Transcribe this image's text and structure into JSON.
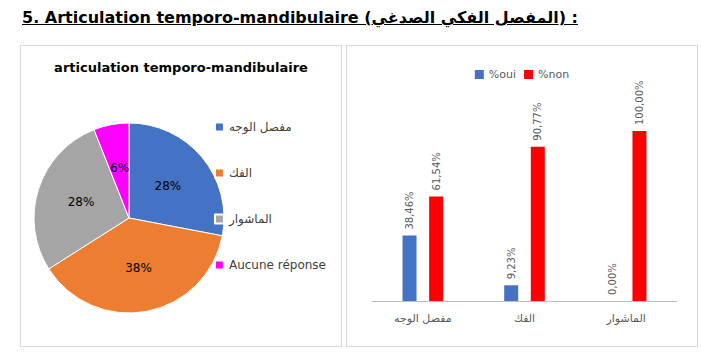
{
  "heading": "5.  Articulation temporo-mandibulaire  (المفصل الفكي الصدغي) :",
  "chart_data": [
    {
      "type": "pie",
      "title": "articulation temporo-mandibulaire",
      "categories": [
        "مفصل الوجه",
        "الفك",
        "الماشوار",
        "Aucune réponse"
      ],
      "values": [
        28,
        38,
        28,
        6
      ],
      "value_labels": [
        "28%",
        "38%",
        "28%",
        "6%"
      ],
      "colors": [
        "#4472c4",
        "#ed7d31",
        "#a5a5a5",
        "#ff00ff"
      ],
      "data_labels": true,
      "legend": "right"
    },
    {
      "type": "bar",
      "categories": [
        "مفصل الوجه",
        "الفك",
        "الماشوار"
      ],
      "series": [
        {
          "name": "%oui",
          "color": "#4472c4",
          "values": [
            38.46,
            9.23,
            0
          ],
          "value_labels": [
            "38,46%",
            "9,23%",
            "0,00%"
          ]
        },
        {
          "name": "%non",
          "color": "#ff0000",
          "values": [
            61.54,
            90.77,
            100
          ],
          "value_labels": [
            "61,54%",
            "90,77%",
            "100,00%"
          ]
        }
      ],
      "ylim": [
        0,
        100
      ],
      "grid": false,
      "tick_labels": "x",
      "data_labels": true,
      "legend": "top"
    }
  ]
}
